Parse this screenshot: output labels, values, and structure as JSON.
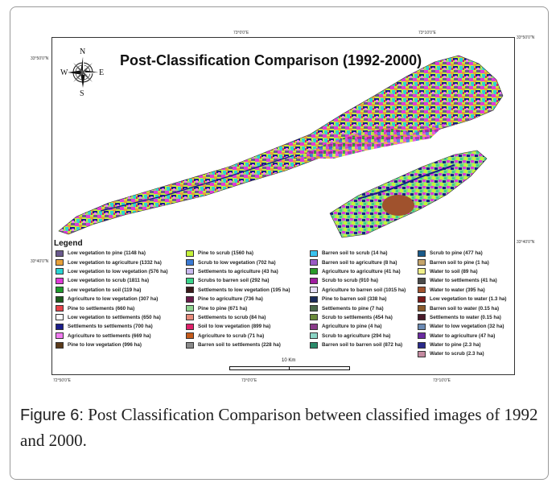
{
  "map": {
    "title": "Post-Classification Comparison (1992-2000)",
    "compass": {
      "n": "N",
      "s": "S",
      "e": "E",
      "w": "W"
    },
    "coordinates": {
      "top_left": "73°0'0\"E",
      "top_right": "73°10'0\"E",
      "bottom_left": "72°50'0\"E",
      "bottom_mid": "73°0'0\"E",
      "bottom_right": "73°10'0\"E",
      "left_top": "33°50'0\"N",
      "left_bottom": "33°40'0\"N",
      "right_top": "33°50'0\"N",
      "right_bottom": "33°40'0\"N"
    },
    "scale_label": "10 Km",
    "legend_title": "Legend",
    "legend_columns": [
      [
        {
          "label": "Low vegetation to pine (1148 ha)",
          "color": "#6a5a8e"
        },
        {
          "label": "Low vegetation to agriculture (1332 ha)",
          "color": "#e8a13a"
        },
        {
          "label": "Low vegetation to low vegetation (576 ha)",
          "color": "#29d4d4"
        },
        {
          "label": "Low vegetation to scrub (1811 ha)",
          "color": "#e03ad8"
        },
        {
          "label": "Low vegetation to soil (119 ha)",
          "color": "#1f9c2c"
        },
        {
          "label": "Agriculture to low vegetation (307 ha)",
          "color": "#1d5c1d"
        },
        {
          "label": "Pine to settlements (660 ha)",
          "color": "#e8434a"
        },
        {
          "label": "Low vegetation to settlements (650 ha)",
          "color": "#ffffff"
        },
        {
          "label": "Settlements to settlements (700 ha)",
          "color": "#1a1d8a"
        },
        {
          "label": "Agriculture to settlements (669 ha)",
          "color": "#f07cf0"
        },
        {
          "label": "Pine to low vegetation (996 ha)",
          "color": "#5a3a1a"
        }
      ],
      [
        {
          "label": "Pine to scrub (1560 ha)",
          "color": "#c4f23a"
        },
        {
          "label": "Scrub to low vegetation (702 ha)",
          "color": "#3a7ad4"
        },
        {
          "label": "Settlements to agriculture (43 ha)",
          "color": "#c9b9ee"
        },
        {
          "label": "Scrubs to barren soil (292 ha)",
          "color": "#3ad48a"
        },
        {
          "label": "Settlements to low vegetation (195 ha)",
          "color": "#3a1a1a"
        },
        {
          "label": "Pine to agriculture (736 ha)",
          "color": "#6a1a4a"
        },
        {
          "label": "Pine to pine (671 ha)",
          "color": "#8ed48e"
        },
        {
          "label": "Settlements to scrub (84 ha)",
          "color": "#e88a7a"
        },
        {
          "label": "Soil to low vegetation (899 ha)",
          "color": "#e0206a"
        },
        {
          "label": "Agriculture to scrub (71 ha)",
          "color": "#c45a1a"
        },
        {
          "label": "Barren soil to settlements (228 ha)",
          "color": "#8a8a8a"
        }
      ],
      [
        {
          "label": "Barren soil to scrub (14 ha)",
          "color": "#3ac4f0"
        },
        {
          "label": "Barren soil to agriculture (8 ha)",
          "color": "#9a5ac4"
        },
        {
          "label": "Agriculture to agriculture (41 ha)",
          "color": "#2a9a2a"
        },
        {
          "label": "Scrub to scrub (910 ha)",
          "color": "#a01aa0"
        },
        {
          "label": "Agriculture to barren soil (1015 ha)",
          "color": "#e8e0f8"
        },
        {
          "label": "Pine to barren soil (338 ha)",
          "color": "#1a2a5a"
        },
        {
          "label": "Settlements to pine (7 ha)",
          "color": "#4a6a4a"
        },
        {
          "label": "Scrub to settlements (454 ha)",
          "color": "#6a8a3a"
        },
        {
          "label": "Agriculture to pine (4 ha)",
          "color": "#8a3a8a"
        },
        {
          "label": "Scrub to agriculture (294 ha)",
          "color": "#8ad4c4"
        },
        {
          "label": "Barren soil to barren soil (872 ha)",
          "color": "#2a8a6a"
        }
      ],
      [
        {
          "label": "Scrub to pine (477 ha)",
          "color": "#1a5a8a"
        },
        {
          "label": "Barren soil to pine (1 ha)",
          "color": "#c4a46a"
        },
        {
          "label": "Water to soil (89 ha)",
          "color": "#f0f08a"
        },
        {
          "label": "Water to settlements (41 ha)",
          "color": "#4a4a4a"
        },
        {
          "label": "Water to water (395 ha)",
          "color": "#a0522d"
        },
        {
          "label": "Low vegetation to water (1.3 ha)",
          "color": "#7a1a1a"
        },
        {
          "label": "Barren soil to water (0.15 ha)",
          "color": "#8a5a2a"
        },
        {
          "label": "Settlements to water (0.15 ha)",
          "color": "#4a1a2a"
        },
        {
          "label": "Water to low vegetation (32 ha)",
          "color": "#6a8ab4"
        },
        {
          "label": "Water to agriculture (47 ha)",
          "color": "#6a2aa0"
        },
        {
          "label": "Water to pine (2.3 ha)",
          "color": "#2a2a8a"
        },
        {
          "label": "Water to scrub (2.3 ha)",
          "color": "#c48aa0"
        }
      ]
    ]
  },
  "caption": {
    "label": "Figure 6:",
    "text": " Post Classification Comparison between classified images of 1992 and 2000."
  }
}
